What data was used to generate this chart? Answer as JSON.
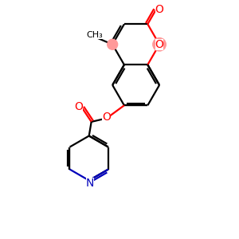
{
  "bg_color": "#ffffff",
  "bond_color": "#000000",
  "o_color": "#ff0000",
  "n_color": "#0000bb",
  "highlight_o": "#ff9999",
  "line_width": 1.6,
  "figsize": [
    3.0,
    3.0
  ],
  "dpi": 100,
  "xlim": [
    0,
    10
  ],
  "ylim": [
    0,
    10
  ]
}
